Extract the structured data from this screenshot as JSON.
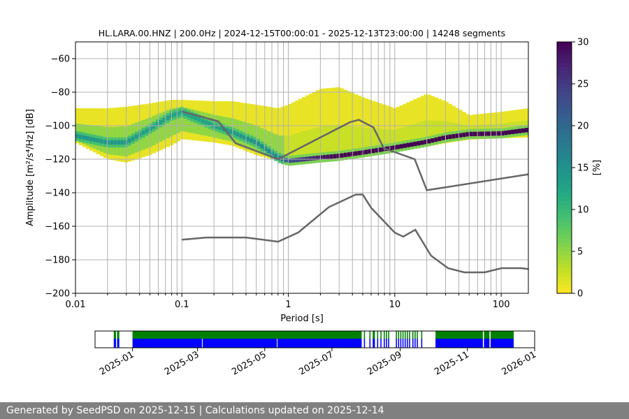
{
  "chart_data": [
    {
      "type": "heatmap",
      "title": "HL.LARA.00.HNZ | 200.0Hz | 2024-12-15T00:00:01 - 2025-12-13T23:00:00 | 14248 segments",
      "xlabel": "Period [s]",
      "ylabel": "Amplitude [m²/s⁴/Hz] [dB]",
      "xscale": "log",
      "xlim": [
        0.01,
        180
      ],
      "ylim": [
        -200,
        -50
      ],
      "xticks": [
        "0.01",
        "0.1",
        "1",
        "10",
        "100"
      ],
      "yticks": [
        "−60",
        "−80",
        "−100",
        "−120",
        "−140",
        "−160",
        "−180",
        "−200"
      ],
      "grid": true,
      "colorbar": {
        "label": "[%]",
        "range": [
          0,
          30
        ],
        "ticks": [
          "0",
          "5",
          "10",
          "15",
          "20",
          "25",
          "30"
        ],
        "colormap": "viridis"
      },
      "density": {
        "period": [
          0.01,
          0.02,
          0.03,
          0.05,
          0.08,
          0.1,
          0.2,
          0.3,
          0.5,
          0.8,
          1.0,
          2,
          3,
          5,
          10,
          20,
          30,
          50,
          100,
          180
        ],
        "upper_db": [
          -89.6,
          -89.6,
          -88.7,
          -86.7,
          -84.6,
          -84.6,
          -85.4,
          -85.4,
          -87.5,
          -89.6,
          -87.5,
          -78,
          -77,
          -83,
          -89.6,
          -81,
          -85.4,
          -93.7,
          -91.7,
          -89.6
        ],
        "mode_db": [
          -106,
          -110,
          -110,
          -102,
          -94,
          -92,
          -100,
          -104,
          -110,
          -119,
          -121,
          -119,
          -118,
          -116,
          -113,
          -109.6,
          -107,
          -105,
          -104.6,
          -102.5
        ],
        "lower_db": [
          -110,
          -120,
          -122,
          -117.5,
          -111.7,
          -108,
          -110,
          -112,
          -117.5,
          -121,
          -122,
          -122,
          -120,
          -119,
          -114.6,
          -112.5,
          -110.4,
          -108.3,
          -107.5,
          -107
        ],
        "mode_percent": [
          14,
          14,
          14,
          13,
          13,
          12,
          13,
          14,
          15,
          16,
          22,
          28,
          30,
          30,
          30,
          30,
          30,
          30,
          30,
          30
        ]
      },
      "series": [
        {
          "period": [
            0.1,
            0.22,
            0.32,
            0.8,
            3.8,
            4.6,
            6.3,
            7.9,
            15.4,
            20,
            180
          ],
          "db": [
            -91.5,
            -97.4,
            -110.5,
            -120,
            -97.9,
            -96.5,
            -101,
            -113.5,
            -120,
            -138.5,
            -129
          ],
          "color": "#666666"
        },
        {
          "period": [
            0.1,
            0.17,
            0.4,
            0.8,
            1.24,
            2.4,
            4.3,
            5,
            6,
            10,
            12,
            15.6,
            21.9,
            31.6,
            45,
            70,
            101,
            154,
            180
          ],
          "db": [
            -168,
            -166.7,
            -166.7,
            -169.2,
            -163.7,
            -148.6,
            -141.1,
            -141.1,
            -149,
            -163.8,
            -166.2,
            -162.1,
            -177.5,
            -185,
            -187.5,
            -187.5,
            -185,
            -185,
            -185.5
          ],
          "color": "#666666"
        }
      ]
    },
    {
      "type": "timeline",
      "xlim": [
        "2024-11-28",
        "2026-01-01"
      ],
      "xticks": [
        "2025-01",
        "2025-03",
        "2025-05",
        "2025-07",
        "2025-09",
        "2025-11",
        "2026-01"
      ],
      "colors": {
        "available": "#008000",
        "used": "#0000ff"
      },
      "segments": [
        [
          "2024-12-15",
          "2024-12-17"
        ],
        [
          "2024-12-18",
          "2024-12-20"
        ],
        [
          "2025-01-01",
          "2025-07-28"
        ],
        [
          "2025-07-30",
          "2025-07-31"
        ],
        [
          "2025-08-04",
          "2025-08-05"
        ],
        [
          "2025-08-07",
          "2025-08-09"
        ],
        [
          "2025-08-11",
          "2025-08-12"
        ],
        [
          "2025-08-14",
          "2025-08-15"
        ],
        [
          "2025-08-17",
          "2025-08-18"
        ],
        [
          "2025-08-19",
          "2025-08-20"
        ],
        [
          "2025-08-21",
          "2025-08-22"
        ],
        [
          "2025-08-28",
          "2025-08-29"
        ],
        [
          "2025-08-30",
          "2025-08-31"
        ],
        [
          "2025-09-01",
          "2025-09-02"
        ],
        [
          "2025-09-03",
          "2025-09-04"
        ],
        [
          "2025-09-05",
          "2025-09-06"
        ],
        [
          "2025-09-07",
          "2025-09-08"
        ],
        [
          "2025-09-09",
          "2025-09-10"
        ],
        [
          "2025-09-12",
          "2025-09-13"
        ],
        [
          "2025-09-14",
          "2025-09-15"
        ],
        [
          "2025-09-16",
          "2025-09-17"
        ],
        [
          "2025-09-20",
          "2025-09-21"
        ],
        [
          "2025-10-03",
          "2025-11-15"
        ],
        [
          "2025-11-16",
          "2025-11-21"
        ],
        [
          "2025-11-22",
          "2025-12-13"
        ]
      ],
      "used_gaps": [
        "2025-03-05",
        "2025-05-12"
      ]
    }
  ],
  "footer": {
    "text": "Generated by SeedPSD on 2025-12-15 | Calculations updated on 2025-12-14"
  }
}
